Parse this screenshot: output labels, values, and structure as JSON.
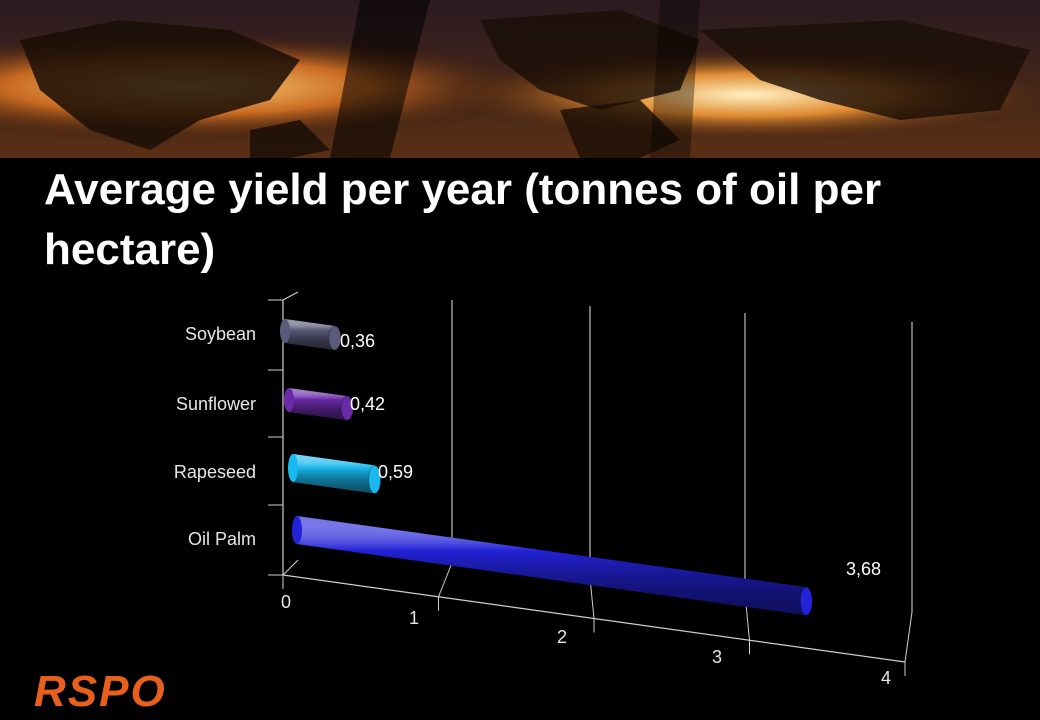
{
  "slide": {
    "title": "Average yield per year (tonnes of oil per hectare)",
    "logo_text": "RSPO"
  },
  "chart_data": {
    "type": "bar",
    "orientation": "horizontal",
    "style": "3d-cylinder",
    "categories": [
      "Soybean",
      "Sunflower",
      "Rapeseed",
      "Oil Palm"
    ],
    "values": [
      0.36,
      0.42,
      0.59,
      3.68
    ],
    "value_labels": [
      "0,36",
      "0,42",
      "0,59",
      "3,68"
    ],
    "bar_colors": [
      "#5a5a7a",
      "#6a2aa8",
      "#19b8ee",
      "#2222d8"
    ],
    "xlim": [
      0,
      4
    ],
    "x_ticks": [
      "0",
      "1",
      "2",
      "3",
      "4"
    ],
    "grid": true,
    "legend": "none"
  }
}
